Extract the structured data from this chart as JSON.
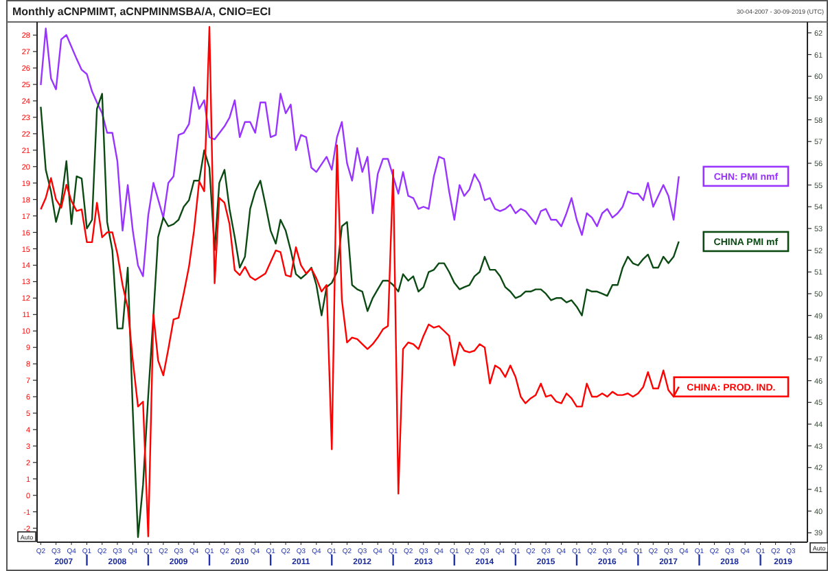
{
  "chart_data": {
    "type": "line",
    "title": "Monthly aCNPMIMT, aCNPMINMSBA/A, CNIO=ECI",
    "subtitle": "30-04-2007 - 30-09-2019 (UTC)",
    "annotations": [
      "Auto",
      "Auto"
    ],
    "xlim": [
      "2007-03-10",
      "2019-10-08"
    ],
    "xticks": [
      {
        "value": "2007-04",
        "label": "Q2"
      },
      {
        "value": "2007-07",
        "label": "Q3"
      },
      {
        "value": "2007-10",
        "label": "Q4"
      },
      {
        "value": "2008-01",
        "label": "Q1"
      },
      {
        "value": "2008-04",
        "label": "Q2"
      },
      {
        "value": "2008-07",
        "label": "Q3"
      },
      {
        "value": "2008-10",
        "label": "Q4"
      },
      {
        "value": "2009-01",
        "label": "Q1"
      },
      {
        "value": "2009-04",
        "label": "Q2"
      },
      {
        "value": "2009-07",
        "label": "Q3"
      },
      {
        "value": "2009-10",
        "label": "Q4"
      },
      {
        "value": "2010-01",
        "label": "Q1"
      },
      {
        "value": "2010-04",
        "label": "Q2"
      },
      {
        "value": "2010-07",
        "label": "Q3"
      },
      {
        "value": "2010-10",
        "label": "Q4"
      },
      {
        "value": "2011-01",
        "label": "Q1"
      },
      {
        "value": "2011-04",
        "label": "Q2"
      },
      {
        "value": "2011-07",
        "label": "Q3"
      },
      {
        "value": "2011-10",
        "label": "Q4"
      },
      {
        "value": "2012-01",
        "label": "Q1"
      },
      {
        "value": "2012-04",
        "label": "Q2"
      },
      {
        "value": "2012-07",
        "label": "Q3"
      },
      {
        "value": "2012-10",
        "label": "Q4"
      },
      {
        "value": "2013-01",
        "label": "Q1"
      },
      {
        "value": "2013-04",
        "label": "Q2"
      },
      {
        "value": "2013-07",
        "label": "Q3"
      },
      {
        "value": "2013-10",
        "label": "Q4"
      },
      {
        "value": "2014-01",
        "label": "Q1"
      },
      {
        "value": "2014-04",
        "label": "Q2"
      },
      {
        "value": "2014-07",
        "label": "Q3"
      },
      {
        "value": "2014-10",
        "label": "Q4"
      },
      {
        "value": "2015-01",
        "label": "Q1"
      },
      {
        "value": "2015-04",
        "label": "Q2"
      },
      {
        "value": "2015-07",
        "label": "Q3"
      },
      {
        "value": "2015-10",
        "label": "Q4"
      },
      {
        "value": "2016-01",
        "label": "Q1"
      },
      {
        "value": "2016-04",
        "label": "Q2"
      },
      {
        "value": "2016-07",
        "label": "Q3"
      },
      {
        "value": "2016-10",
        "label": "Q4"
      },
      {
        "value": "2017-01",
        "label": "Q1"
      },
      {
        "value": "2017-04",
        "label": "Q2"
      },
      {
        "value": "2017-07",
        "label": "Q3"
      },
      {
        "value": "2017-10",
        "label": "Q4"
      },
      {
        "value": "2018-01",
        "label": "Q1"
      },
      {
        "value": "2018-04",
        "label": "Q2"
      },
      {
        "value": "2018-07",
        "label": "Q3"
      },
      {
        "value": "2018-10",
        "label": "Q4"
      },
      {
        "value": "2019-01",
        "label": "Q1"
      },
      {
        "value": "2019-04",
        "label": "Q2"
      },
      {
        "value": "2019-07",
        "label": "Q3"
      }
    ],
    "x2lim": [
      "2007-03-10",
      "2019-10-08"
    ],
    "x2ticks": [
      {
        "value": "2007-08-16",
        "label": "2007"
      },
      {
        "value": "2008-01-01",
        "label": null
      },
      {
        "value": "2008-07-01",
        "label": "2008"
      },
      {
        "value": "2009-01-01",
        "label": null
      },
      {
        "value": "2009-07-01",
        "label": "2009"
      },
      {
        "value": "2010-01-01",
        "label": null
      },
      {
        "value": "2010-07-01",
        "label": "2010"
      },
      {
        "value": "2011-01-01",
        "label": null
      },
      {
        "value": "2011-07-01",
        "label": "2011"
      },
      {
        "value": "2012-01-01",
        "label": null
      },
      {
        "value": "2012-07-01",
        "label": "2012"
      },
      {
        "value": "2013-01-01",
        "label": null
      },
      {
        "value": "2013-07-01",
        "label": "2013"
      },
      {
        "value": "2014-01-01",
        "label": null
      },
      {
        "value": "2014-07-01",
        "label": "2014"
      },
      {
        "value": "2015-01-01",
        "label": null
      },
      {
        "value": "2015-07-01",
        "label": "2015"
      },
      {
        "value": "2016-01-01",
        "label": null
      },
      {
        "value": "2016-07-01",
        "label": "2016"
      },
      {
        "value": "2017-01-01",
        "label": null
      },
      {
        "value": "2017-07-01",
        "label": "2017"
      },
      {
        "value": "2018-01-01",
        "label": null
      },
      {
        "value": "2018-07-01",
        "label": "2018"
      },
      {
        "value": "2019-01-01",
        "label": null
      },
      {
        "value": "2019-05-16",
        "label": "2019"
      }
    ],
    "ylim": [
      -2.85,
      28.8
    ],
    "yticks": [
      -2,
      -1,
      0,
      1,
      2,
      3,
      4,
      5,
      6,
      7,
      8,
      9,
      10,
      11,
      12,
      13,
      14,
      15,
      16,
      17,
      18,
      19,
      20,
      21,
      22,
      23,
      24,
      25,
      26,
      27,
      28
    ],
    "y2lim": [
      38.57,
      62.5
    ],
    "y2ticks": [
      39,
      40,
      41,
      42,
      43,
      44,
      45,
      46,
      47,
      48,
      49,
      50,
      51,
      52,
      53,
      54,
      55,
      56,
      57,
      58,
      59,
      60,
      61,
      62
    ],
    "grid": false,
    "marker": "none",
    "line_style": "solid",
    "series": [
      {
        "name": "CHN: PMI nmf",
        "color": "#9933ff",
        "axis": "y2",
        "x": [
          "2007-04",
          "2007-05",
          "2007-06",
          "2007-07",
          "2007-08",
          "2007-09",
          "2007-11",
          "2007-12",
          "2008-01",
          "2008-02",
          "2008-03",
          "2008-04",
          "2008-05",
          "2008-06",
          "2008-07",
          "2008-08",
          "2008-09",
          "2008-10",
          "2008-11",
          "2008-12",
          "2009-01",
          "2009-02",
          "2009-04",
          "2009-05",
          "2009-06",
          "2009-07",
          "2009-08",
          "2009-09",
          "2009-10",
          "2009-11",
          "2009-12",
          "2010-01",
          "2010-02",
          "2010-04",
          "2010-05",
          "2010-06",
          "2010-07",
          "2010-08",
          "2010-09",
          "2010-10",
          "2010-11",
          "2010-12",
          "2011-01",
          "2011-02",
          "2011-03",
          "2011-04",
          "2011-05",
          "2011-06",
          "2011-07",
          "2011-08",
          "2011-09",
          "2011-10",
          "2011-12",
          "2012-01",
          "2012-02",
          "2012-03",
          "2012-04",
          "2012-05",
          "2012-06",
          "2012-07",
          "2012-08",
          "2012-09",
          "2012-10",
          "2012-11",
          "2012-12",
          "2013-02",
          "2013-03",
          "2013-04",
          "2013-05",
          "2013-06",
          "2013-07",
          "2013-08",
          "2013-09",
          "2013-10",
          "2013-11",
          "2013-12",
          "2014-01",
          "2014-02",
          "2014-03",
          "2014-04",
          "2014-05",
          "2014-06",
          "2014-07",
          "2014-08",
          "2014-09",
          "2014-10",
          "2014-11",
          "2014-12",
          "2015-01",
          "2015-02",
          "2015-03",
          "2015-04",
          "2015-05",
          "2015-06",
          "2015-07",
          "2015-08",
          "2015-09",
          "2015-10",
          "2015-11",
          "2015-12",
          "2016-01",
          "2016-02",
          "2016-03",
          "2016-04",
          "2016-05",
          "2016-06",
          "2016-07",
          "2016-08",
          "2016-09",
          "2016-10",
          "2016-11",
          "2016-12",
          "2017-01",
          "2017-02",
          "2017-03",
          "2017-04",
          "2017-06",
          "2017-07",
          "2017-08",
          "2017-09"
        ],
        "values": [
          59.6,
          62.2,
          59.9,
          59.4,
          61.7,
          61.9,
          60.8,
          60.3,
          60.1,
          59.3,
          58.8,
          58.3,
          57.4,
          57.4,
          56.1,
          52.9,
          55.0,
          52.9,
          51.3,
          50.8,
          53.6,
          55.1,
          53.5,
          55.1,
          55.4,
          57.3,
          57.4,
          57.8,
          59.5,
          58.5,
          58.9,
          57.2,
          57.1,
          57.7,
          58.1,
          58.9,
          57.2,
          57.9,
          57.9,
          57.4,
          58.8,
          58.8,
          57.2,
          57.3,
          59.2,
          58.3,
          58.7,
          56.6,
          57.3,
          57.2,
          55.8,
          55.6,
          56.3,
          55.7,
          57.2,
          57.9,
          56.0,
          55.2,
          56.7,
          55.6,
          56.3,
          53.7,
          55.5,
          56.2,
          56.2,
          54.6,
          55.6,
          54.5,
          54.4,
          53.9,
          54.0,
          53.9,
          55.4,
          56.3,
          56.2,
          54.7,
          53.4,
          55.0,
          54.5,
          54.8,
          55.5,
          55.1,
          54.3,
          54.4,
          53.9,
          53.8,
          53.9,
          54.1,
          53.7,
          53.9,
          53.8,
          53.5,
          53.2,
          53.8,
          53.9,
          53.4,
          53.4,
          53.1,
          53.7,
          54.4,
          53.4,
          52.7,
          53.7,
          53.5,
          53.1,
          53.7,
          53.9,
          53.5,
          53.7,
          54.0,
          54.7,
          54.6,
          54.6,
          54.3,
          55.1,
          54.0,
          55.0,
          54.5,
          53.4,
          55.4
        ]
      },
      {
        "name": "CHINA PMI mf",
        "color": "#0b4a12",
        "axis": "y2",
        "x": [
          "2007-04",
          "2007-05",
          "2007-06",
          "2007-07",
          "2007-08",
          "2007-09",
          "2007-10",
          "2007-11",
          "2007-12",
          "2008-01",
          "2008-02",
          "2008-03",
          "2008-04",
          "2008-05",
          "2008-06",
          "2008-07",
          "2008-08",
          "2008-09",
          "2008-10",
          "2008-11",
          "2008-12",
          "2009-01",
          "2009-02",
          "2009-03",
          "2009-04",
          "2009-05",
          "2009-06",
          "2009-07",
          "2009-08",
          "2009-09",
          "2009-10",
          "2009-11",
          "2009-12",
          "2010-01",
          "2010-02",
          "2010-03",
          "2010-04",
          "2010-05",
          "2010-06",
          "2010-07",
          "2010-08",
          "2010-09",
          "2010-10",
          "2010-11",
          "2010-12",
          "2011-01",
          "2011-02",
          "2011-03",
          "2011-04",
          "2011-05",
          "2011-06",
          "2011-07",
          "2011-08",
          "2011-09",
          "2011-10",
          "2011-11",
          "2011-12",
          "2012-01",
          "2012-02",
          "2012-03",
          "2012-04",
          "2012-05",
          "2012-06",
          "2012-07",
          "2012-08",
          "2012-09",
          "2012-10",
          "2012-11",
          "2012-12",
          "2013-01",
          "2013-02",
          "2013-03",
          "2013-04",
          "2013-05",
          "2013-06",
          "2013-07",
          "2013-08",
          "2013-09",
          "2013-10",
          "2013-11",
          "2013-12",
          "2014-01",
          "2014-02",
          "2014-03",
          "2014-04",
          "2014-05",
          "2014-06",
          "2014-07",
          "2014-08",
          "2014-09",
          "2014-10",
          "2014-11",
          "2014-12",
          "2015-01",
          "2015-02",
          "2015-03",
          "2015-04",
          "2015-05",
          "2015-06",
          "2015-07",
          "2015-08",
          "2015-09",
          "2015-10",
          "2015-11",
          "2015-12",
          "2016-01",
          "2016-02",
          "2016-03",
          "2016-04",
          "2016-05",
          "2016-06",
          "2016-07",
          "2016-08",
          "2016-09",
          "2016-10",
          "2016-11",
          "2016-12",
          "2017-01",
          "2017-02",
          "2017-03",
          "2017-04",
          "2017-05",
          "2017-06",
          "2017-07",
          "2017-08",
          "2017-09"
        ],
        "values": [
          58.6,
          55.7,
          54.7,
          53.3,
          54.2,
          56.1,
          53.2,
          55.4,
          55.3,
          53.0,
          53.4,
          58.5,
          59.2,
          53.3,
          52.0,
          48.4,
          48.4,
          51.2,
          44.6,
          38.8,
          41.2,
          45.3,
          49.0,
          52.6,
          53.5,
          53.1,
          53.2,
          53.4,
          54.0,
          54.3,
          55.2,
          55.2,
          56.6,
          55.8,
          52.0,
          55.1,
          55.7,
          53.9,
          52.6,
          51.2,
          51.7,
          53.9,
          54.7,
          55.2,
          54.1,
          52.9,
          52.3,
          53.4,
          52.9,
          52.0,
          50.9,
          50.7,
          50.9,
          51.2,
          50.4,
          49.0,
          50.3,
          50.5,
          51.0,
          53.1,
          53.3,
          50.4,
          50.2,
          50.1,
          49.2,
          49.8,
          50.2,
          50.6,
          50.6,
          50.4,
          50.1,
          50.9,
          50.6,
          50.8,
          50.1,
          50.3,
          51.0,
          51.1,
          51.4,
          51.4,
          51.0,
          50.5,
          50.2,
          50.3,
          50.4,
          50.8,
          51.0,
          51.7,
          51.1,
          51.1,
          50.8,
          50.3,
          50.1,
          49.8,
          49.9,
          50.1,
          50.1,
          50.2,
          50.2,
          50.0,
          49.7,
          49.8,
          49.8,
          49.6,
          49.7,
          49.4,
          49.0,
          50.2,
          50.1,
          50.1,
          50.0,
          49.9,
          50.4,
          50.4,
          51.2,
          51.7,
          51.4,
          51.3,
          51.6,
          51.8,
          51.2,
          51.2,
          51.7,
          51.4,
          51.7,
          52.4
        ]
      },
      {
        "name": "CHINA: PROD. IND.",
        "color": "#ff0000",
        "axis": "y",
        "x": [
          "2007-04",
          "2007-05",
          "2007-06",
          "2007-07",
          "2007-08",
          "2007-09",
          "2007-10",
          "2007-11",
          "2007-12",
          "2008-01",
          "2008-02",
          "2008-03",
          "2008-04",
          "2008-05",
          "2008-06",
          "2008-07",
          "2008-08",
          "2008-09",
          "2008-10",
          "2008-11",
          "2008-12",
          "2009-01",
          "2009-02",
          "2009-03",
          "2009-04",
          "2009-05",
          "2009-06",
          "2009-07",
          "2009-08",
          "2009-09",
          "2009-10",
          "2009-11",
          "2009-12",
          "2010-01",
          "2010-02",
          "2010-03",
          "2010-04",
          "2010-05",
          "2010-06",
          "2010-07",
          "2010-08",
          "2010-09",
          "2010-10",
          "2010-11",
          "2010-12",
          "2011-02",
          "2011-03",
          "2011-04",
          "2011-05",
          "2011-06",
          "2011-07",
          "2011-08",
          "2011-09",
          "2011-10",
          "2011-11",
          "2011-12",
          "2012-01",
          "2012-02",
          "2012-03",
          "2012-04",
          "2012-05",
          "2012-06",
          "2012-07",
          "2012-08",
          "2012-09",
          "2012-10",
          "2012-11",
          "2012-12",
          "2013-01",
          "2013-02",
          "2013-03",
          "2013-04",
          "2013-05",
          "2013-06",
          "2013-07",
          "2013-08",
          "2013-09",
          "2013-10",
          "2013-11",
          "2013-12",
          "2014-01",
          "2014-02",
          "2014-03",
          "2014-04",
          "2014-05",
          "2014-06",
          "2014-07",
          "2014-08",
          "2014-09",
          "2014-10",
          "2014-11",
          "2014-12",
          "2015-01",
          "2015-02",
          "2015-03",
          "2015-04",
          "2015-05",
          "2015-06",
          "2015-07",
          "2015-08",
          "2015-09",
          "2015-10",
          "2015-11",
          "2015-12",
          "2016-01",
          "2016-02",
          "2016-03",
          "2016-04",
          "2016-05",
          "2016-06",
          "2016-07",
          "2016-08",
          "2016-09",
          "2016-10",
          "2016-11",
          "2016-12",
          "2017-01",
          "2017-02",
          "2017-03",
          "2017-04",
          "2017-05",
          "2017-06",
          "2017-07",
          "2017-08",
          "2017-09"
        ],
        "values": [
          17.4,
          18.1,
          19.3,
          18.0,
          17.5,
          18.9,
          17.9,
          17.3,
          17.4,
          15.4,
          15.4,
          17.8,
          15.7,
          16.0,
          16.0,
          14.7,
          12.8,
          11.4,
          8.2,
          5.4,
          5.7,
          -2.5,
          11.0,
          8.2,
          7.3,
          8.9,
          10.7,
          10.8,
          12.3,
          13.9,
          16.1,
          19.1,
          18.5,
          28.5,
          12.9,
          18.1,
          17.8,
          16.5,
          13.7,
          13.4,
          13.9,
          13.3,
          13.1,
          13.3,
          13.5,
          14.9,
          14.8,
          13.4,
          13.3,
          15.1,
          14.0,
          13.5,
          13.8,
          13.2,
          12.4,
          12.8,
          2.8,
          21.3,
          11.9,
          9.3,
          9.6,
          9.5,
          9.2,
          8.9,
          9.2,
          9.6,
          10.1,
          10.3,
          19.8,
          0.1,
          8.9,
          9.3,
          9.2,
          8.9,
          9.7,
          10.4,
          10.2,
          10.3,
          10.0,
          9.7,
          7.9,
          9.3,
          8.8,
          8.7,
          8.8,
          9.2,
          9.0,
          6.8,
          7.9,
          7.7,
          7.2,
          7.9,
          7.2,
          6.0,
          5.6,
          5.9,
          6.1,
          6.8,
          6.0,
          6.1,
          5.7,
          5.6,
          6.2,
          5.9,
          5.4,
          5.4,
          6.8,
          6.0,
          6.0,
          6.2,
          6.0,
          6.3,
          6.1,
          6.1,
          6.2,
          6.0,
          6.2,
          6.6,
          7.5,
          6.5,
          6.5,
          7.6,
          6.4,
          6.0,
          6.6
        ]
      }
    ]
  }
}
